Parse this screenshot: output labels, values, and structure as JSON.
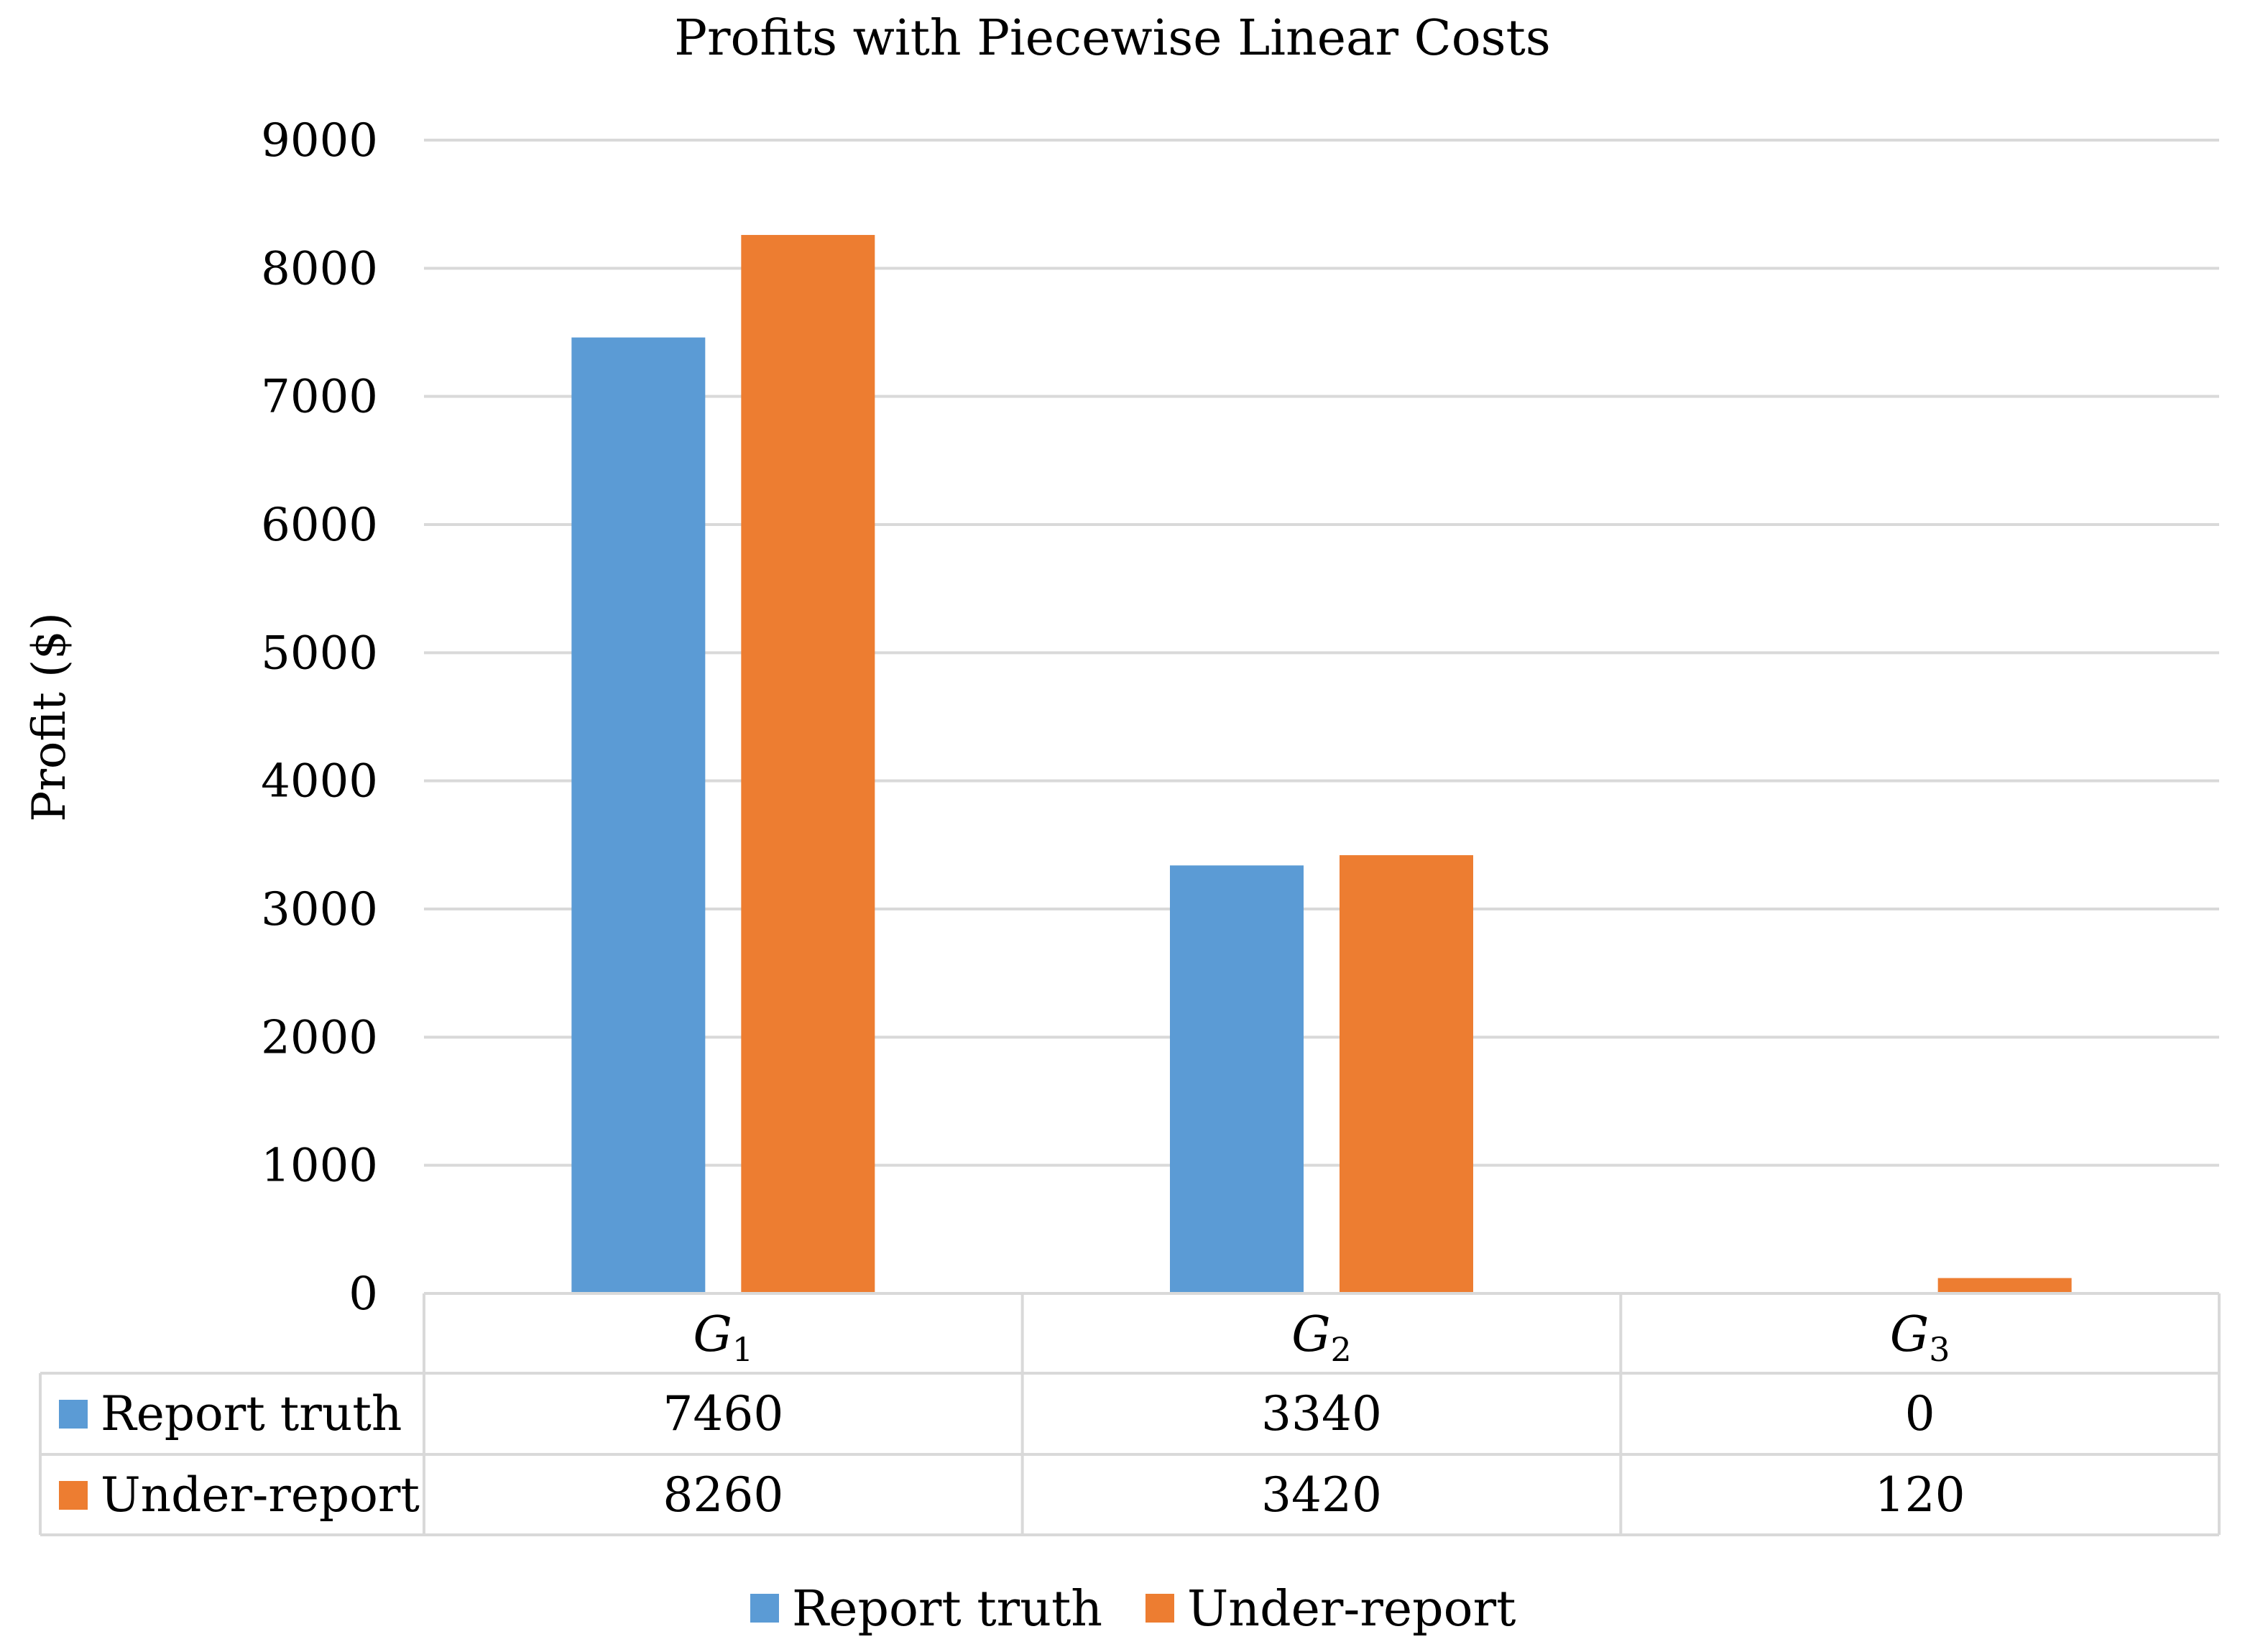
{
  "chart_data": {
    "type": "bar",
    "title": "Profits with Piecewise Linear Costs",
    "xlabel": "",
    "ylabel": "Profit ($)",
    "ylim": [
      0,
      9000
    ],
    "yticks": [
      0,
      1000,
      2000,
      3000,
      4000,
      5000,
      6000,
      7000,
      8000,
      9000
    ],
    "grid": true,
    "legend_position": "bottom-center",
    "categories": [
      {
        "base": "G",
        "sub": "1"
      },
      {
        "base": "G",
        "sub": "2"
      },
      {
        "base": "G",
        "sub": "3"
      }
    ],
    "series": [
      {
        "name": "Report truth",
        "color": "#5b9bd5",
        "values": [
          7460,
          3340,
          0
        ]
      },
      {
        "name": "Under-report",
        "color": "#ed7d31",
        "values": [
          8260,
          3420,
          120
        ]
      }
    ]
  }
}
